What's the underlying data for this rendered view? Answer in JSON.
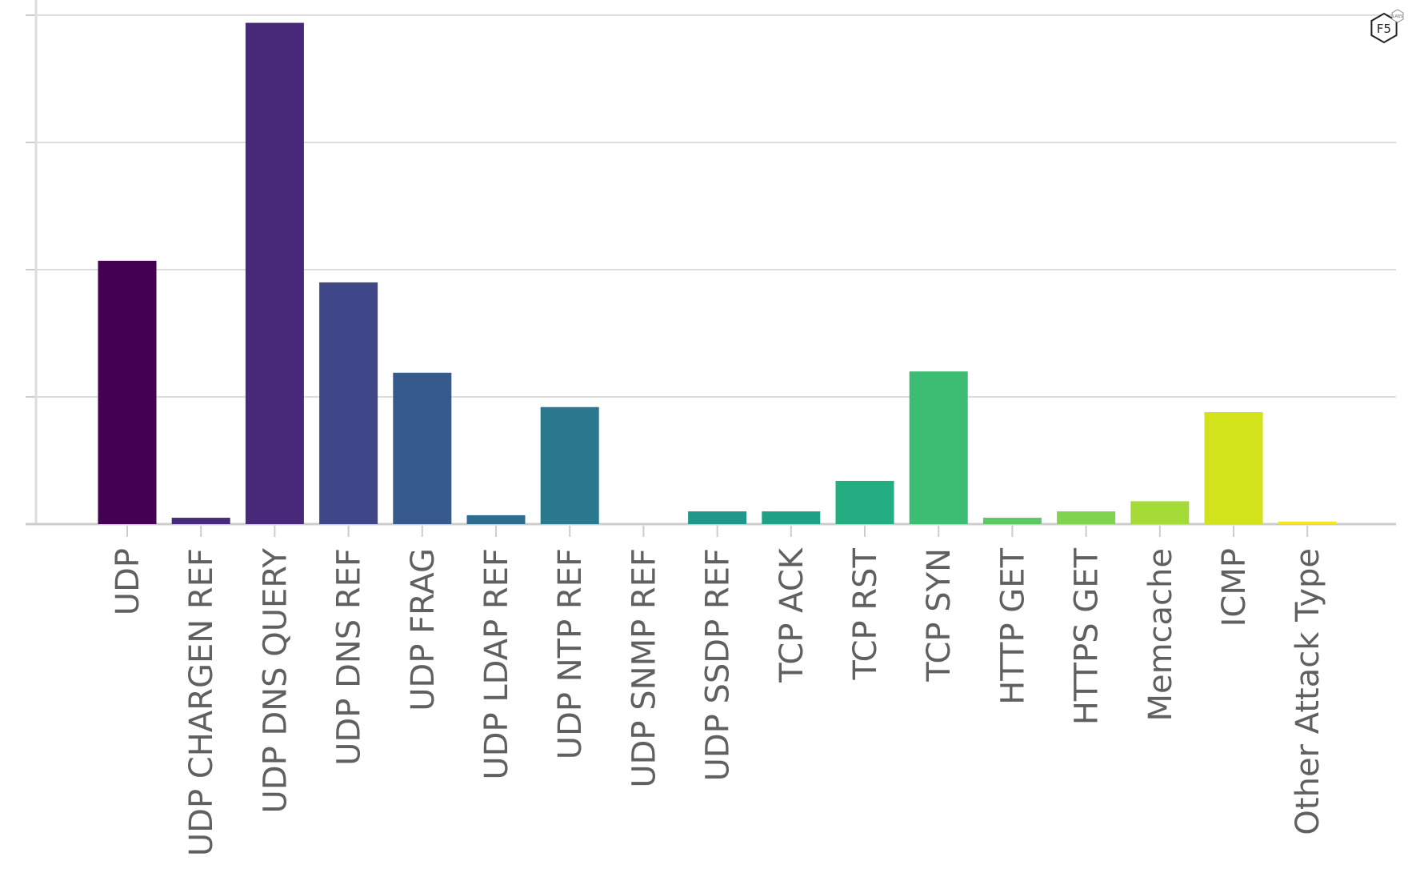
{
  "chart_data": {
    "type": "bar",
    "categories": [
      "UDP",
      "UDP CHARGEN REF",
      "UDP DNS QUERY",
      "UDP DNS REF",
      "UDP FRAG",
      "UDP LDAP REF",
      "UDP NTP REF",
      "UDP SNMP REF",
      "UDP SSDP REF",
      "TCP ACK",
      "TCP RST",
      "TCP SYN",
      "HTTP GET",
      "HTTPS GET",
      "Memcache",
      "ICMP",
      "Other Attack Type"
    ],
    "values": [
      2.07,
      0.05,
      3.94,
      1.9,
      1.19,
      0.07,
      0.92,
      0.0,
      0.1,
      0.1,
      0.34,
      1.2,
      0.05,
      0.1,
      0.18,
      0.88,
      0.02
    ],
    "colors": [
      "#440154",
      "#481769",
      "#472a7a",
      "#433d84",
      "#3d4e8a",
      "#355e8d",
      "#2e6d8e",
      "#297b8e",
      "#23898e",
      "#1f968b",
      "#20a386",
      "#29af7f",
      "#3dbc74",
      "#56c667",
      "#75d054",
      "#95d840",
      "#bade28",
      "#dde318",
      "#fde725"
    ],
    "bar_colors": [
      "#440154",
      "#472a7a",
      "#482878",
      "#3f4788",
      "#375a8c",
      "#2e6b8e",
      "#2a788e",
      "#228b8d",
      "#1f978b",
      "#1fa187",
      "#25ad82",
      "#3dbc74",
      "#5cc863",
      "#7fd34e",
      "#a5db36",
      "#d2e21b",
      "#f6e620"
    ],
    "ylim": [
      0,
      4
    ],
    "yticks": [
      0,
      1,
      2,
      3,
      4
    ],
    "grid": true,
    "xlabel": "",
    "ylabel": ""
  },
  "logo": {
    "text": "F5",
    "sub": "LABS",
    "icon": "f5-labs-hexagon-logo"
  }
}
